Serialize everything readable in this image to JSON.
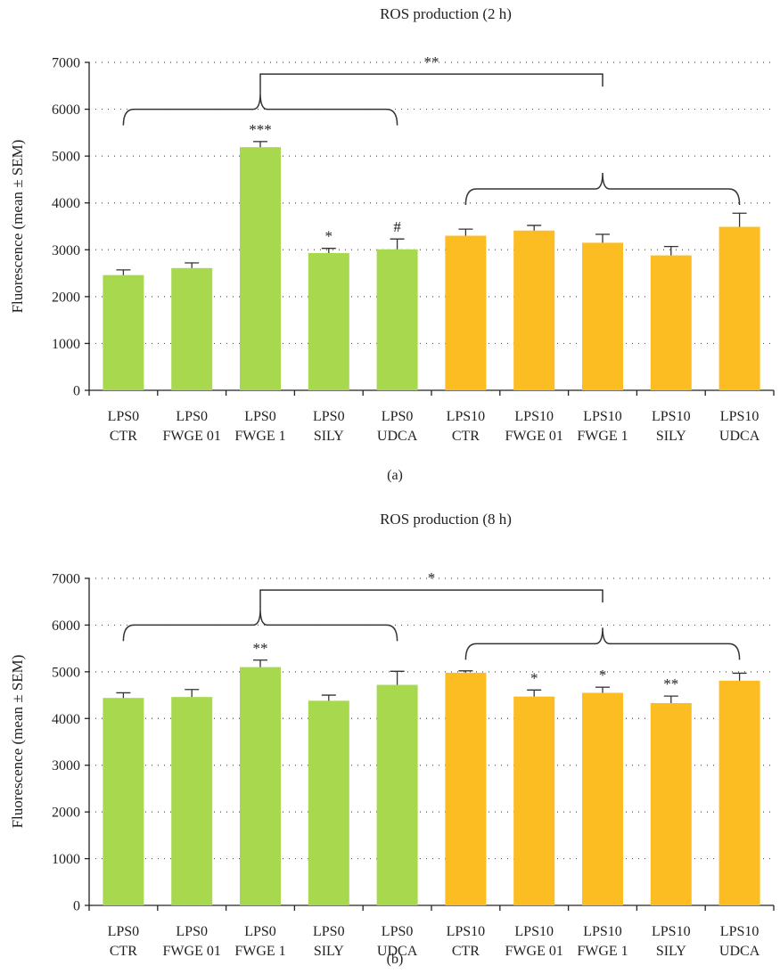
{
  "colors": {
    "lps0": "#a8d84e",
    "lps10": "#fbbd22",
    "axis": "#222222"
  },
  "chart_data": [
    {
      "type": "bar",
      "panel_label": "(a)",
      "title": "ROS production (2 h)",
      "ylabel": "Fluorescence (mean ± SEM)",
      "xlabel": "",
      "ylim": [
        0,
        7000
      ],
      "yticks": [
        0,
        1000,
        2000,
        3000,
        4000,
        5000,
        6000,
        7000
      ],
      "grid": true,
      "categories": [
        [
          "LPS0",
          "CTR"
        ],
        [
          "LPS0",
          "FWGE 01"
        ],
        [
          "LPS0",
          "FWGE 1"
        ],
        [
          "LPS0",
          "SILY"
        ],
        [
          "LPS0",
          "UDCA"
        ],
        [
          "LPS10",
          "CTR"
        ],
        [
          "LPS10",
          "FWGE 01"
        ],
        [
          "LPS10",
          "FWGE 1"
        ],
        [
          "LPS10",
          "SILY"
        ],
        [
          "LPS10",
          "UDCA"
        ]
      ],
      "values": [
        2460,
        2610,
        5190,
        2930,
        3010,
        3300,
        3410,
        3150,
        2880,
        3490
      ],
      "errors": [
        110,
        110,
        120,
        100,
        220,
        140,
        110,
        180,
        190,
        290
      ],
      "group_color": [
        "lps0",
        "lps0",
        "lps0",
        "lps0",
        "lps0",
        "lps10",
        "lps10",
        "lps10",
        "lps10",
        "lps10"
      ],
      "annotations": [
        {
          "bar": 2,
          "text": "***"
        },
        {
          "bar": 3,
          "text": "*"
        },
        {
          "bar": 4,
          "text": "#"
        }
      ],
      "group_braces": [
        {
          "from": 0,
          "to": 4,
          "y": 6000
        },
        {
          "from": 5,
          "to": 9,
          "y": 4300
        }
      ],
      "comparison": {
        "text": "**",
        "y": 6750
      }
    },
    {
      "type": "bar",
      "panel_label": "(b)",
      "title": "ROS production (8 h)",
      "ylabel": "Fluorescence (mean ± SEM)",
      "xlabel": "",
      "ylim": [
        0,
        7000
      ],
      "yticks": [
        0,
        1000,
        2000,
        3000,
        4000,
        5000,
        6000,
        7000
      ],
      "grid": true,
      "categories": [
        [
          "LPS0",
          "CTR"
        ],
        [
          "LPS0",
          "FWGE 01"
        ],
        [
          "LPS0",
          "FWGE 1"
        ],
        [
          "LPS0",
          "SILY"
        ],
        [
          "LPS0",
          "UDCA"
        ],
        [
          "LPS10",
          "CTR"
        ],
        [
          "LPS10",
          "FWGE 01"
        ],
        [
          "LPS10",
          "FWGE 1"
        ],
        [
          "LPS10",
          "SILY"
        ],
        [
          "LPS10",
          "UDCA"
        ]
      ],
      "values": [
        4440,
        4460,
        5100,
        4380,
        4720,
        4980,
        4470,
        4550,
        4330,
        4810
      ],
      "errors": [
        110,
        160,
        150,
        120,
        290,
        40,
        140,
        120,
        150,
        160
      ],
      "group_color": [
        "lps0",
        "lps0",
        "lps0",
        "lps0",
        "lps0",
        "lps10",
        "lps10",
        "lps10",
        "lps10",
        "lps10"
      ],
      "annotations": [
        {
          "bar": 2,
          "text": "**"
        },
        {
          "bar": 6,
          "text": "*"
        },
        {
          "bar": 7,
          "text": "*"
        },
        {
          "bar": 8,
          "text": "**"
        }
      ],
      "group_braces": [
        {
          "from": 0,
          "to": 4,
          "y": 6000
        },
        {
          "from": 5,
          "to": 9,
          "y": 5600
        }
      ],
      "comparison": {
        "text": "*",
        "y": 6750
      }
    }
  ]
}
